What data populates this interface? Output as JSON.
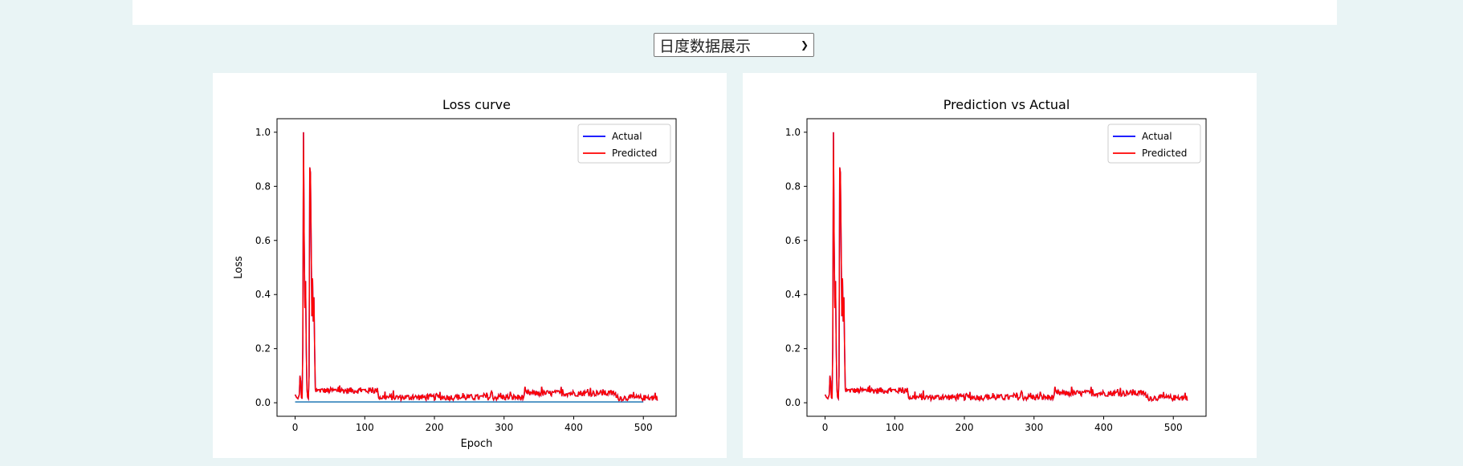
{
  "selector": {
    "selected": "日度数据展示"
  },
  "colors": {
    "actual": "#0000ff",
    "predicted": "#ff0000",
    "baseline": "#1f77b4"
  },
  "chart_data": [
    {
      "type": "line",
      "title": "Loss curve",
      "xlabel": "Epoch",
      "ylabel": "Loss",
      "xlim": [
        -26,
        547
      ],
      "ylim": [
        -0.05,
        1.05
      ],
      "xticks": [
        0,
        100,
        200,
        300,
        400,
        500
      ],
      "yticks": [
        0.0,
        0.2,
        0.4,
        0.6,
        0.8,
        1.0
      ],
      "legend": "top-right",
      "grid": false,
      "series": [
        {
          "name": "Actual",
          "color": "#0000ff"
        },
        {
          "name": "Predicted",
          "color": "#ff0000"
        }
      ],
      "baseline": {
        "color": "#1f77b4",
        "y": 0.003,
        "x": [
          0,
          500
        ]
      }
    },
    {
      "type": "line",
      "title": "Prediction vs Actual",
      "xlabel": "",
      "ylabel": "",
      "xlim": [
        -26,
        547
      ],
      "ylim": [
        -0.05,
        1.05
      ],
      "xticks": [
        0,
        100,
        200,
        300,
        400,
        500
      ],
      "yticks": [
        0.0,
        0.2,
        0.4,
        0.6,
        0.8,
        1.0
      ],
      "legend": "top-right",
      "grid": false,
      "series": [
        {
          "name": "Actual",
          "color": "#0000ff"
        },
        {
          "name": "Predicted",
          "color": "#ff0000"
        }
      ]
    }
  ],
  "shared_series": {
    "keypoints": [
      [
        0,
        0.03
      ],
      [
        2,
        0.02
      ],
      [
        4,
        0.015
      ],
      [
        6,
        0.03
      ],
      [
        7,
        0.1
      ],
      [
        8,
        0.08
      ],
      [
        9,
        0.02
      ],
      [
        10,
        0.015
      ],
      [
        11,
        0.2
      ],
      [
        12,
        1.0
      ],
      [
        13,
        0.6
      ],
      [
        14,
        0.35
      ],
      [
        15,
        0.45
      ],
      [
        16,
        0.2
      ],
      [
        17,
        0.05
      ],
      [
        18,
        0.02
      ],
      [
        19,
        0.015
      ],
      [
        20,
        0.1
      ],
      [
        21,
        0.87
      ],
      [
        22,
        0.85
      ],
      [
        23,
        0.6
      ],
      [
        24,
        0.32
      ],
      [
        25,
        0.46
      ],
      [
        26,
        0.3
      ],
      [
        27,
        0.39
      ],
      [
        28,
        0.2
      ],
      [
        29,
        0.05
      ],
      [
        30,
        0.04
      ],
      [
        31,
        0.05
      ],
      [
        32,
        0.045
      ]
    ],
    "tail_start": 33,
    "tail_end": 520
  }
}
